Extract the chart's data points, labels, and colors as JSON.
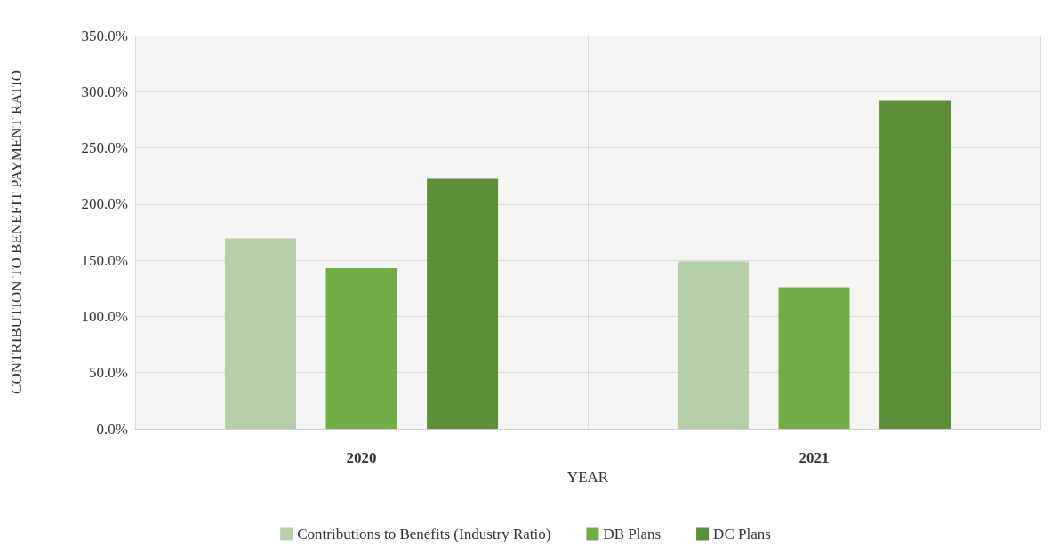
{
  "chart_data": {
    "type": "bar",
    "xlabel": "YEAR",
    "ylabel": "CONTRIBUTION TO BENEFIT PAYMENT RATIO",
    "categories": [
      "2020",
      "2021"
    ],
    "series": [
      {
        "name": "Contributions to Benefits (Industry Ratio)",
        "color": "#b5cfa8",
        "values": [
          169.5,
          149
        ]
      },
      {
        "name": "DB Plans",
        "color": "#70ad47",
        "values": [
          143,
          126
        ]
      },
      {
        "name": "DC Plans",
        "color": "#5b8f3a",
        "values": [
          222.5,
          292
        ]
      }
    ],
    "ylim": [
      0,
      350
    ],
    "yticks": [
      {
        "value": 0,
        "label": "0.0%"
      },
      {
        "value": 50,
        "label": "50.0%"
      },
      {
        "value": 100,
        "label": "100.0%"
      },
      {
        "value": 150,
        "label": "150.0%"
      },
      {
        "value": 200,
        "label": "200.0%"
      },
      {
        "value": 250,
        "label": "250.0%"
      },
      {
        "value": 300,
        "label": "300.0%"
      },
      {
        "value": 350,
        "label": "350.0%"
      }
    ],
    "grid": true,
    "legend": "bottom"
  }
}
